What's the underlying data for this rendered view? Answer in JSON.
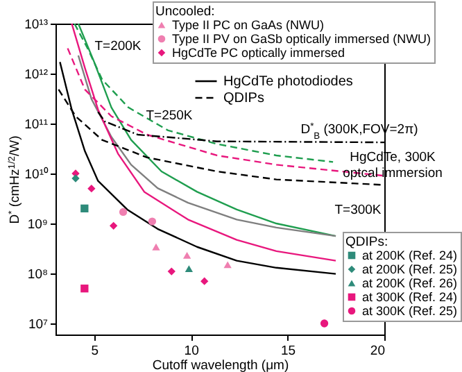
{
  "chart_data": {
    "type": "line",
    "xlabel": "Cutoff wavelength (μm)",
    "ylabel": "D$^{*}$ (cmHz$^{1/2}$/W)",
    "legend_title": "Uncooled:",
    "legend": "top right",
    "log": "y",
    "xlim": [
      3,
      20
    ],
    "xticks": [
      5,
      10,
      15,
      20
    ],
    "ylim": [
      6000000.0,
      10000000000000.0
    ],
    "yticks": [
      {
        "value": 10000000.0,
        "label": "10⁷"
      },
      {
        "value": 100000000.0,
        "label": "10⁸"
      },
      {
        "value": 1000000000.0,
        "label": "10⁹"
      },
      {
        "value": 10000000000.0,
        "label": "10¹⁰"
      },
      {
        "value": 100000000000.0,
        "label": "10¹¹"
      },
      {
        "value": 1000000000000.0,
        "label": "10¹²"
      },
      {
        "value": 10000000000000.0,
        "label": "10¹³"
      }
    ],
    "annotations": [
      "QDIPs:",
      "T=200K",
      "T=250K",
      "T=300K",
      "D$^{*}$$_{B}$ (300K,FOV=2π)",
      "HgCdTe, 300K\noptcal immersion"
    ],
    "series": [
      {
        "type": "line",
        "color": "#1f9e4f",
        "line_style": "solid",
        "x": [
          4.18,
          5.0,
          5.89,
          6.91,
          8.48,
          10.32,
          12.37,
          14.42,
          17.49
        ],
        "values": [
          10000000000000.0,
          1700000000000.0,
          210000000000.0,
          47000000000.0,
          11000000000.0,
          4300000000.0,
          1900000000.0,
          1000000000.0,
          560000000.0
        ]
      },
      {
        "type": "line",
        "color": "#7f7f7f",
        "line_style": "solid",
        "x": [
          4.18,
          4.86,
          5.89,
          6.91,
          8.28,
          9.85,
          12.37,
          14.42,
          17.49
        ],
        "values": [
          2300000000000.0,
          310000000000.0,
          54000000000.0,
          15000000000.0,
          5100000000.0,
          2600000000.0,
          1200000000.0,
          830000000.0,
          560000000.0
        ]
      },
      {
        "type": "line",
        "color": "#e8177d",
        "line_style": "solid",
        "x": [
          3.84,
          4.52,
          5.2,
          6.23,
          7.59,
          9.85,
          12.37,
          14.42,
          17.49
        ],
        "values": [
          10000000000000.0,
          1300000000000.0,
          190000000000.0,
          25000000000.0,
          4300000000.0,
          1200000000.0,
          470000000.0,
          280000000.0,
          180000000.0
        ]
      },
      {
        "type": "line",
        "name": "HgCdTe photodiodes",
        "color": "#000000",
        "line_style": "solid",
        "x": [
          3.23,
          3.84,
          4.52,
          5.2,
          6.71,
          8.28,
          10.32,
          12.37,
          14.42,
          17.49
        ],
        "values": [
          1700000000000.0,
          190000000000.0,
          28000000000.0,
          7100000000.0,
          1900000000.0,
          780000000.0,
          340000000.0,
          180000000.0,
          130000000.0,
          98000000.0
        ]
      },
      {
        "type": "line",
        "color": "#1f9e4f",
        "line_style": "dashed",
        "x": [
          3.98,
          4.66,
          5.41,
          6.77,
          8.82,
          11.35,
          14.42,
          17.35
        ],
        "values": [
          10000000000000.0,
          3200000000000.0,
          760000000000.0,
          210000000000.0,
          73000000000.0,
          39000000000.0,
          23000000000.0,
          17000000000.0
        ]
      },
      {
        "type": "line",
        "color": "#e8177d",
        "line_style": "dashed",
        "x": [
          3.63,
          4.52,
          5.89,
          7.73,
          11.35,
          14.42,
          20
        ],
        "values": [
          3200000000000.0,
          480000000000.0,
          140000000000.0,
          60000000000.0,
          23000000000.0,
          15000000000.0,
          9000000000.0
        ]
      },
      {
        "type": "line",
        "name": "QDIPs",
        "color": "#000000",
        "line_style": "dashed",
        "x": [
          3.16,
          4.04,
          5.41,
          7.73,
          11.35,
          14.42,
          20
        ],
        "values": [
          480000000000.0,
          140000000000.0,
          47000000000.0,
          21000000000.0,
          11000000000.0,
          7600000000.0,
          5900000000.0
        ]
      },
      {
        "type": "line",
        "color": "#000000",
        "line_style": "dashdot",
        "x": [
          5.2,
          5.55,
          7.25,
          11.35,
          20
        ],
        "values": [
          170000000000.0,
          110000000000.0,
          60000000000.0,
          44000000000.0,
          42000000000.0
        ]
      },
      {
        "type": "scatter",
        "name": "Type II PC on GaAs (NWU)",
        "color": "#ef7fb0",
        "marker": "triangle",
        "x": [
          8.2,
          9.8,
          11.9
        ],
        "values": [
          340000000.0,
          230000000.0,
          150000000.0
        ]
      },
      {
        "type": "scatter",
        "name": "Type II PV on GaSb optically immersed (NWU)",
        "color": "#ef7fb0",
        "marker": "circle",
        "x": [
          6.5,
          8.0
        ],
        "values": [
          1700000000.0,
          1100000000.0
        ]
      },
      {
        "type": "scatter",
        "name": "HgCdTe PC optically immersed",
        "color": "#e8177d",
        "marker": "diamond",
        "x": [
          4.04,
          4.86,
          6.0,
          9.0,
          10.7
        ],
        "values": [
          10000000000.0,
          5000000000.0,
          900000000.0,
          110000000.0,
          70000000.0
        ]
      },
      {
        "type": "scatter",
        "name": "at 200K (Ref. 24)",
        "color": "#2e8b7a",
        "marker": "square",
        "x": [
          4.5
        ],
        "values": [
          2000000000.0
        ]
      },
      {
        "type": "scatter",
        "name": "at 200K (Ref. 25)",
        "color": "#2e8b7a",
        "marker": "diamond",
        "x": [
          4.04
        ],
        "values": [
          8000000000.0
        ]
      },
      {
        "type": "scatter",
        "name": "at 200K (Ref. 26)",
        "color": "#2e8b7a",
        "marker": "triangle",
        "x": [
          9.9
        ],
        "values": [
          125000000.0
        ]
      },
      {
        "type": "scatter",
        "name": "at 300K (Ref. 24)",
        "color": "#e8177d",
        "marker": "square",
        "x": [
          4.5
        ],
        "values": [
          50000000.0
        ]
      },
      {
        "type": "scatter",
        "name": "at 300K (Ref. 25)",
        "color": "#e8177d",
        "marker": "circle",
        "x": [
          16.9
        ],
        "values": [
          10000000.0
        ]
      }
    ]
  }
}
